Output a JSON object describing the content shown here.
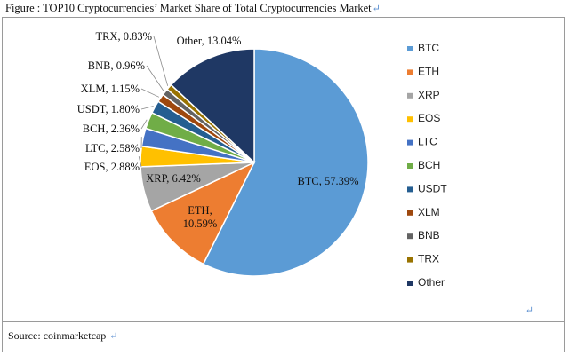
{
  "figure": {
    "caption": "Figure : TOP10 Cryptocurrencies’ Market Share of Total Cryptocurrencies Market",
    "source": "Source: coinmarketcap",
    "return_mark": "↵"
  },
  "chart_data": {
    "type": "pie",
    "title": "",
    "categories": [
      "BTC",
      "ETH",
      "XRP",
      "EOS",
      "LTC",
      "BCH",
      "USDT",
      "XLM",
      "BNB",
      "TRX",
      "Other"
    ],
    "values": [
      57.39,
      10.59,
      6.42,
      2.88,
      2.58,
      2.36,
      1.8,
      1.15,
      0.96,
      0.83,
      13.04
    ],
    "slice_labels": [
      "BTC, 57.39%",
      "ETH,",
      "XRP, 6.42%",
      "EOS, 2.88%",
      "LTC, 2.58%",
      "BCH, 2.36%",
      "USDT, 1.80%",
      "XLM, 1.15%",
      "BNB, 0.96%",
      "TRX, 0.83%",
      "Other, 13.04%"
    ],
    "slice_labels_line2": [
      "",
      "10.59%",
      "",
      "",
      "",
      "",
      "",
      "",
      "",
      "",
      ""
    ],
    "colors": [
      "#5b9bd5",
      "#ed7d31",
      "#a5a5a5",
      "#ffc000",
      "#4472c4",
      "#70ad47",
      "#255e91",
      "#9e480e",
      "#636363",
      "#997300",
      "#1f3864"
    ],
    "legend": [
      "BTC",
      "ETH",
      "XRP",
      "EOS",
      "LTC",
      "BCH",
      "USDT",
      "XLM",
      "BNB",
      "TRX",
      "Other"
    ],
    "legend_position": "right",
    "start_angle": "12 o'clock",
    "direction": "clockwise"
  }
}
